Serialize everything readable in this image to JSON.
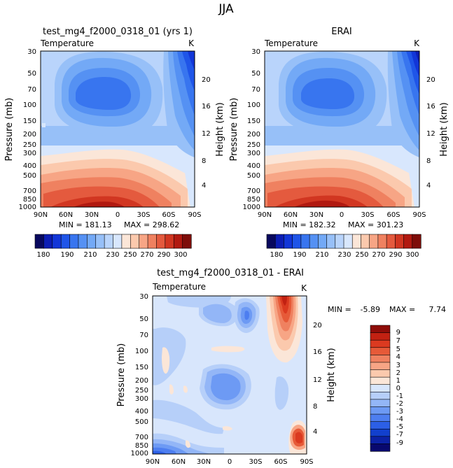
{
  "page_title": "JJA",
  "palettes": {
    "abs_colors": [
      "#08085e",
      "#0c1db4",
      "#1236d8",
      "#1f55e8",
      "#3875ef",
      "#5591f3",
      "#73a9f6",
      "#97c0f8",
      "#b9d4fb",
      "#d8e7fd",
      "#fbe6d8",
      "#fbc9ad",
      "#f7a585",
      "#ef8160",
      "#e45a3e",
      "#d13621",
      "#b11910",
      "#7e0d09"
    ],
    "abs_labels": [
      "180",
      "190",
      "210",
      "230",
      "250",
      "270",
      "290",
      "300"
    ],
    "diff_colors": [
      "#08086e",
      "#0c22a6",
      "#1240cd",
      "#2c5fe6",
      "#4d7ef0",
      "#6d9af4",
      "#93b6f7",
      "#b6cff9",
      "#d8e6fc",
      "#fbe6d8",
      "#fbc9ad",
      "#f7a585",
      "#ef8160",
      "#e65a38",
      "#db3a20",
      "#c22112",
      "#8e0d09"
    ],
    "diff_labels": [
      "9",
      "7",
      "5",
      "4",
      "3",
      "2",
      "1",
      "0",
      "-1",
      "-2",
      "-3",
      "-4",
      "-5",
      "-7",
      "-9"
    ]
  },
  "chart_data": [
    {
      "type": "heatmap",
      "title": "test_mg4_f2000_0318_01 (yrs 1)",
      "subtitle_left": "Temperature",
      "subtitle_right": "K",
      "ylabel": "Pressure (mb)",
      "y2label": "Height (km)",
      "x_ticks": [
        "90N",
        "60N",
        "30N",
        "0",
        "30S",
        "60S",
        "90S"
      ],
      "y_ticks": [
        "30",
        "50",
        "70",
        "100",
        "150",
        "200",
        "250",
        "300",
        "400",
        "500",
        "700",
        "850",
        "1000"
      ],
      "y2_ticks": [
        "20",
        "16",
        "12",
        "8",
        "4"
      ],
      "min_label": "MIN = 181.13",
      "max_label": "MAX = 298.62",
      "min": 181.13,
      "max": 298.62
    },
    {
      "type": "heatmap",
      "title": "ERAI",
      "subtitle_left": "Temperature",
      "subtitle_right": "K",
      "ylabel": "Pressure (mb)",
      "y2label": "Height (km)",
      "x_ticks": [
        "90N",
        "60N",
        "30N",
        "0",
        "30S",
        "60S",
        "90S"
      ],
      "y_ticks": [
        "30",
        "50",
        "70",
        "100",
        "150",
        "200",
        "250",
        "300",
        "400",
        "500",
        "700",
        "850",
        "1000"
      ],
      "y2_ticks": [
        "20",
        "16",
        "12",
        "8",
        "4"
      ],
      "min_label": "MIN = 182.32",
      "max_label": "MAX = 301.23",
      "min": 182.32,
      "max": 301.23
    },
    {
      "type": "heatmap",
      "title": "test_mg4_f2000_0318_01 - ERAI",
      "subtitle_left": "Temperature",
      "subtitle_right": "K",
      "ylabel": "Pressure (mb)",
      "y2label": "Height (km)",
      "x_ticks": [
        "90N",
        "60N",
        "30N",
        "0",
        "30S",
        "60S",
        "90S"
      ],
      "y_ticks": [
        "30",
        "50",
        "70",
        "100",
        "150",
        "200",
        "250",
        "300",
        "400",
        "500",
        "700",
        "850",
        "1000"
      ],
      "y2_ticks": [
        "20",
        "16",
        "12",
        "8",
        "4"
      ],
      "min_label": "MIN =",
      "min_value": "-5.89",
      "max_label": "MAX =",
      "max_value": "7.74",
      "min": -5.89,
      "max": 7.74
    }
  ]
}
